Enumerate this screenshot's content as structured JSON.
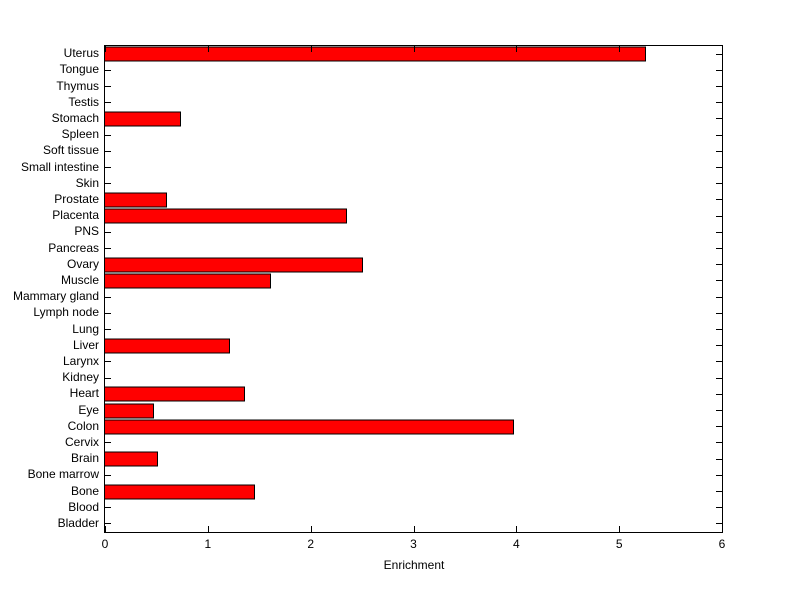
{
  "chart_data": {
    "type": "bar",
    "orientation": "horizontal",
    "title": "",
    "xlabel": "Enrichment",
    "ylabel": "",
    "xlim": [
      0,
      6
    ],
    "xticks": [
      0,
      1,
      2,
      3,
      4,
      5,
      6
    ],
    "grid": false,
    "legend": "none",
    "bar_color": "#ff0000",
    "bar_edge_color": "#000000",
    "axis_color": "#000000",
    "background_color": "#ffffff",
    "categories": [
      "Uterus",
      "Tongue",
      "Thymus",
      "Testis",
      "Stomach",
      "Spleen",
      "Soft tissue",
      "Small intestine",
      "Skin",
      "Prostate",
      "Placenta",
      "PNS",
      "Pancreas",
      "Ovary",
      "Muscle",
      "Mammary gland",
      "Lymph node",
      "Lung",
      "Liver",
      "Larynx",
      "Kidney",
      "Heart",
      "Eye",
      "Colon",
      "Cervix",
      "Brain",
      "Bone marrow",
      "Bone",
      "Blood",
      "Bladder"
    ],
    "values": [
      5.25,
      0,
      0,
      0,
      0.73,
      0,
      0,
      0,
      0,
      0.59,
      2.34,
      0,
      0,
      2.5,
      1.6,
      0,
      0,
      0,
      1.21,
      0,
      0,
      1.35,
      0.47,
      3.97,
      0,
      0.51,
      0,
      1.45,
      0,
      0
    ]
  }
}
